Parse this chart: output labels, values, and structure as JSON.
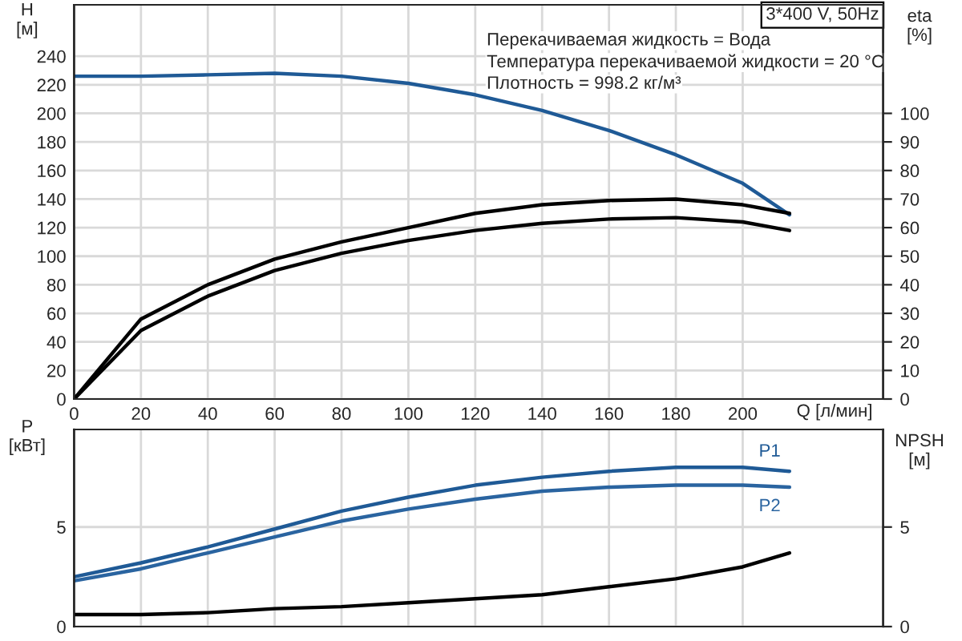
{
  "chart_data": [
    {
      "type": "line",
      "xlabel": "Q [л/мин]",
      "ylabel": "H\n[м]",
      "y2label": "eta\n[%]",
      "annotations": [
        "3*400 V, 50Hz",
        "Перекачиваемая жидкость = Вода",
        "Температура перекачиваемой жидкости = 20 °C",
        "Плотность = 998.2 кг/м³"
      ],
      "x": [
        0,
        20,
        40,
        60,
        80,
        100,
        120,
        140,
        160,
        180,
        200,
        214
      ],
      "series": [
        {
          "color": "#1f5a96",
          "values": [
            226,
            226,
            227,
            228,
            226,
            221,
            213,
            202,
            188,
            171,
            151,
            129
          ]
        },
        {
          "color": "#000000",
          "axis": "y2",
          "values": [
            0,
            28,
            40,
            49,
            55,
            60,
            65,
            68,
            69.5,
            70,
            68,
            65
          ]
        },
        {
          "color": "#000000",
          "axis": "y2",
          "values": [
            0,
            24,
            36,
            45,
            51,
            55.5,
            59,
            61.5,
            63,
            63.5,
            62,
            59
          ]
        }
      ],
      "xlim": [
        0,
        242
      ],
      "xticks": [
        0,
        20,
        40,
        60,
        80,
        100,
        120,
        140,
        160,
        180,
        200
      ],
      "ylim": [
        0,
        276
      ],
      "yticks": [
        0,
        20,
        40,
        60,
        80,
        100,
        120,
        140,
        160,
        180,
        200,
        220,
        240
      ],
      "y2lim": [
        0,
        138
      ],
      "y2ticks": [
        0,
        10,
        20,
        30,
        40,
        50,
        60,
        70,
        80,
        90,
        100
      ],
      "grid": true,
      "legend": false
    },
    {
      "type": "line",
      "ylabel": "P\n[кВт]",
      "y2label": "NPSH\n[м]",
      "x": [
        0,
        20,
        40,
        60,
        80,
        100,
        120,
        140,
        160,
        180,
        200,
        214
      ],
      "series": [
        {
          "name": "P1",
          "color": "#1f5a96",
          "values": [
            2.5,
            3.2,
            4.0,
            4.9,
            5.8,
            6.5,
            7.1,
            7.5,
            7.8,
            8.0,
            8.0,
            7.8
          ]
        },
        {
          "name": "P2",
          "color": "#2a64a0",
          "values": [
            2.3,
            2.9,
            3.7,
            4.5,
            5.3,
            5.9,
            6.4,
            6.8,
            7.0,
            7.1,
            7.1,
            7.0
          ]
        },
        {
          "color": "#000000",
          "axis": "y2",
          "values": [
            0.6,
            0.6,
            0.7,
            0.9,
            1.0,
            1.2,
            1.4,
            1.6,
            2.0,
            2.4,
            3.0,
            3.7
          ]
        }
      ],
      "xlim": [
        0,
        242
      ],
      "xticks": [
        0,
        20,
        40,
        60,
        80,
        100,
        120,
        140,
        160,
        180,
        200
      ],
      "ylim": [
        0,
        9.9
      ],
      "yticks": [
        0,
        5
      ],
      "y2lim": [
        0,
        9.9
      ],
      "y2ticks": [
        0,
        5
      ],
      "tick_labels": "y",
      "grid": true,
      "legend": false
    }
  ]
}
